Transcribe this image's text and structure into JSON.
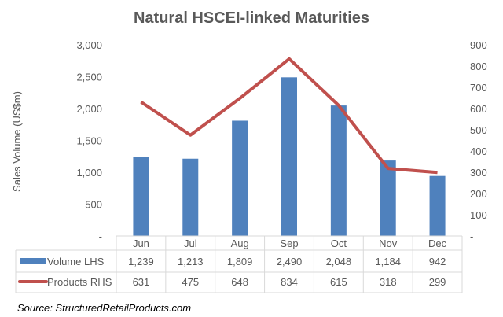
{
  "chart_data": {
    "type": "bar+line",
    "title": "Natural HSCEI-linked Maturities",
    "ylabel": "Sales Volume (US$m)",
    "categories": [
      "Jun",
      "Jul",
      "Aug",
      "Sep",
      "Oct",
      "Nov",
      "Dec"
    ],
    "series": [
      {
        "name": "Volume LHS",
        "type": "bar",
        "axis": "left",
        "color": "#4f81bd",
        "values": [
          1239,
          1213,
          1809,
          2490,
          2048,
          1184,
          942
        ],
        "labels": [
          "1,239",
          "1,213",
          "1,809",
          "2,490",
          "2,048",
          "1,184",
          "942"
        ]
      },
      {
        "name": "Products RHS",
        "type": "line",
        "axis": "right",
        "color": "#c0504d",
        "values": [
          631,
          475,
          648,
          834,
          615,
          318,
          299
        ],
        "labels": [
          "631",
          "475",
          "648",
          "834",
          "615",
          "318",
          "299"
        ]
      }
    ],
    "ylim_left": [
      0,
      3000
    ],
    "ylim_right": [
      0,
      900
    ],
    "left_ticks": [
      "-",
      "500",
      "1,000",
      "1,500",
      "2,000",
      "2,500",
      "3,000"
    ],
    "right_ticks": [
      "-",
      "100",
      "200",
      "300",
      "400",
      "500",
      "600",
      "700",
      "800",
      "900"
    ],
    "grid": false,
    "legend": "data-table"
  },
  "source": "Source: StructuredRetailProducts.com"
}
